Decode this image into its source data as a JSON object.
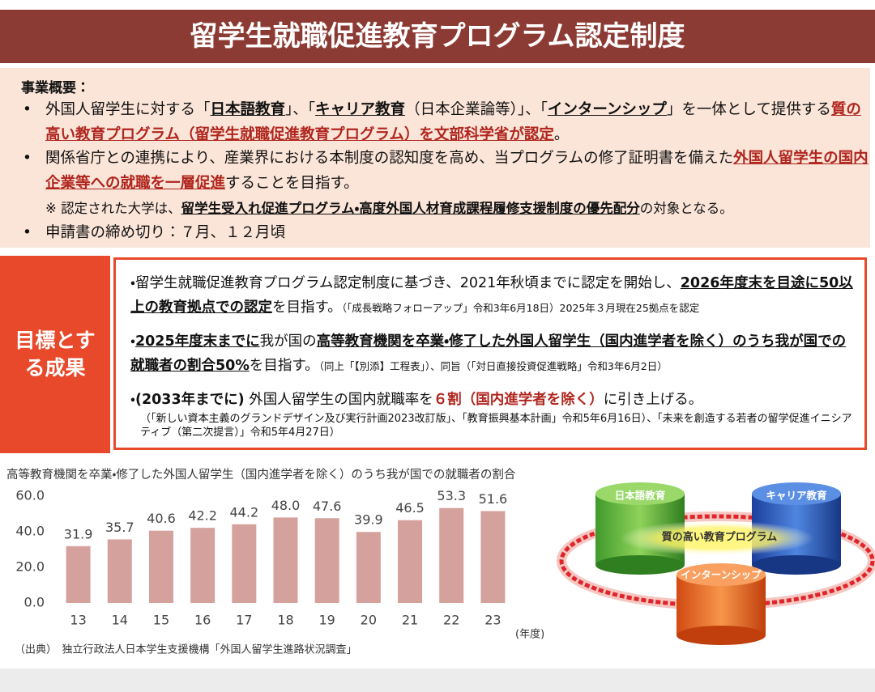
{
  "title": "留学生就職促進教育プログラム認定制度",
  "overview": {
    "heading": "事業概要：",
    "items": [
      [
        "外国人留学生に対する「",
        "日本語教育",
        "」、「",
        "キャリア教育",
        "（日本企業論等）」、「",
        "インターンシップ",
        "」を一体として提供する",
        "質の高い教育プログラム（留学生就職促進教育プログラム）を文部科学省が認定",
        "。"
      ],
      [
        "関係省庁との連携により、産業界における本制度の認知度を高め、当プログラムの修了証明書を備えた",
        "外国人留学生の国内企業等への就職を一層促進",
        "することを目指す。"
      ],
      [
        "申請書の締め切り：７月、１２月頃"
      ]
    ],
    "note": [
      "※ 認定された大学は、",
      "留学生受入れ促進プログラム・高度外国人材育成課程履修支援制度の優先配分",
      "の対象となる。"
    ]
  },
  "goals": {
    "label": "目標とする成果",
    "items": [
      {
        "segments": [
          "・留学生就職促進教育プログラム認定制度に基づき、2021年秋頃までに認定を開始し、",
          "2026年度末を目途に50以上の教育拠点での認定",
          "を目指す。"
        ],
        "note": "（「成長戦略フォローアップ」令和3年6月18日）2025年３月現在25拠点を認定"
      },
      {
        "segments": [
          "・",
          "2025年度末までに",
          "我が国の",
          "高等教育機関を卒業・修了した外国人留学生（国内進学者を除く）のうち我が国での就職者の割合50%",
          "を目指す。"
        ],
        "note": "（同上「【別添】工程表」）、同旨（「対日直接投資促進戦略」令和3年6月2日）"
      },
      {
        "segments": [
          "・",
          "(2033年までに)",
          " 外国人留学生の国内就職率を",
          "６割（国内進学者を除く）",
          "に引き上げる。"
        ],
        "note": "（「新しい資本主義のグランドデザイン及び実行計画2023改訂版」、「教育振興基本計画」令和5年6月16日）、「未来を創造する若者の留学促進イニシアティブ（第二次提言）」令和5年4月27日）"
      }
    ]
  },
  "chart_data": {
    "type": "bar",
    "title": "高等教育機関を卒業・修了した外国人留学生（国内進学者を除く）のうち我が国での就職者の割合",
    "categories": [
      "13",
      "14",
      "15",
      "16",
      "17",
      "18",
      "19",
      "20",
      "21",
      "22",
      "23"
    ],
    "values": [
      31.9,
      35.7,
      40.6,
      42.2,
      44.2,
      48.0,
      47.6,
      39.9,
      46.5,
      53.3,
      51.6
    ],
    "value_labels": [
      "31.9",
      "35.7",
      "40.6",
      "42.2",
      "44.2",
      "48.0",
      "47.6",
      "39.9",
      "46.5",
      "53.3",
      "51.6"
    ],
    "color": "#d4a19d",
    "ylim": [
      0,
      60
    ],
    "yticks": [
      {
        "value": 0,
        "label": "0.0"
      },
      {
        "value": 20,
        "label": "20.0"
      },
      {
        "value": 40,
        "label": "40.0"
      },
      {
        "value": 60,
        "label": "60.0"
      }
    ],
    "x_label": "(年度)",
    "source": "（出典）　独立行政法人日本学生支援機構「外国人留学生進路状況調査」"
  },
  "diagram": {
    "nodes": [
      "日本語教育",
      "キャリア教育",
      "インターンシップ"
    ],
    "center": "質の高い教育プログラム"
  }
}
